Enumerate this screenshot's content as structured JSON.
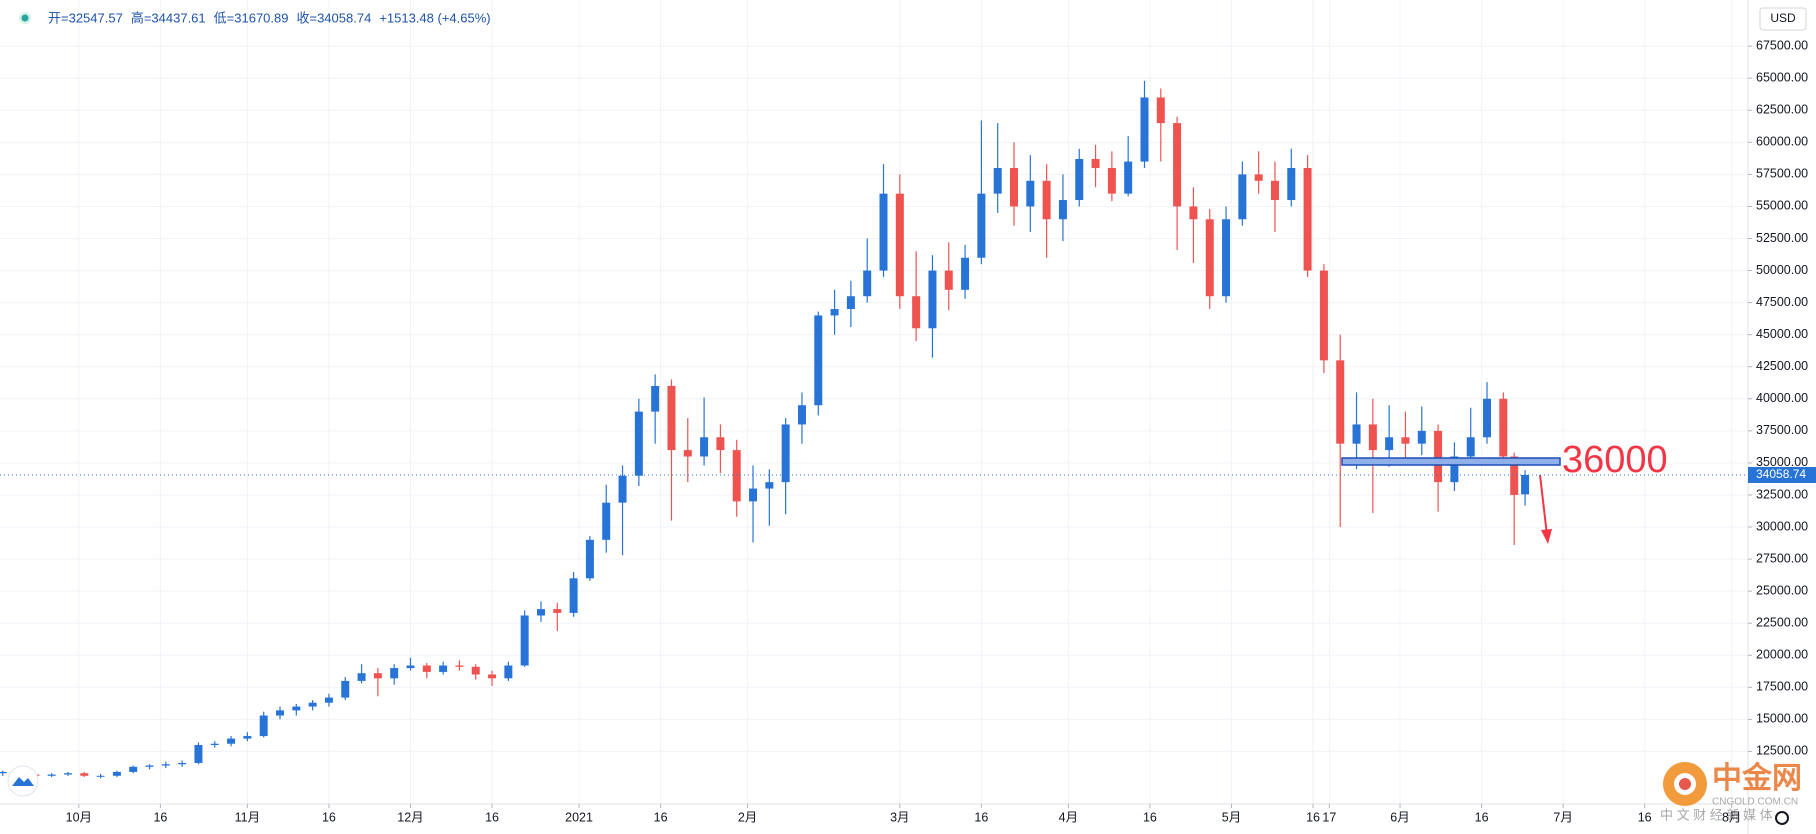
{
  "chart_data": {
    "type": "candlestick",
    "header": [
      "开=32547.57",
      "高=34437.61",
      "低=31670.89",
      "收=34058.74",
      "+1513.48 (+4.65%)"
    ],
    "currency": "USD",
    "annotation": "36000",
    "price_label": {
      "value": 34058.74,
      "label": "34058.74"
    },
    "up_color": "#2874d6",
    "down_color": "#ef5350",
    "grid": true,
    "xlim": [
      -14.5,
      307
    ],
    "ylim": [
      8400,
      71100
    ],
    "xticks": [
      {
        "value": 0,
        "label": "10月"
      },
      {
        "value": 15,
        "label": "16"
      },
      {
        "value": 31,
        "label": "11月"
      },
      {
        "value": 46,
        "label": "16"
      },
      {
        "value": 61,
        "label": "12月"
      },
      {
        "value": 76,
        "label": "16"
      },
      {
        "value": 92,
        "label": "2021"
      },
      {
        "value": 107,
        "label": "16"
      },
      {
        "value": 123,
        "label": "2月"
      },
      {
        "value": 151,
        "label": "3月"
      },
      {
        "value": 166,
        "label": "16"
      },
      {
        "value": 182,
        "label": "4月"
      },
      {
        "value": 197,
        "label": "16"
      },
      {
        "value": 212,
        "label": "5月"
      },
      {
        "value": 227,
        "label": "16"
      },
      {
        "value": 230,
        "label": "17"
      },
      {
        "value": 243,
        "label": "6月"
      },
      {
        "value": 258,
        "label": "16"
      },
      {
        "value": 273,
        "label": "7月"
      },
      {
        "value": 288,
        "label": "16"
      },
      {
        "value": 304,
        "label": "8月"
      }
    ],
    "yticks": [
      {
        "value": 12500,
        "label": "12500.00"
      },
      {
        "value": 15000,
        "label": "15000.00"
      },
      {
        "value": 17500,
        "label": "17500.00"
      },
      {
        "value": 20000,
        "label": "20000.00"
      },
      {
        "value": 22500,
        "label": "22500.00"
      },
      {
        "value": 25000,
        "label": "25000.00"
      },
      {
        "value": 27500,
        "label": "27500.00"
      },
      {
        "value": 30000,
        "label": "30000.00"
      },
      {
        "value": 32500,
        "label": "32500.00"
      },
      {
        "value": 35000,
        "label": "35000.00"
      },
      {
        "value": 37500,
        "label": "37500.00"
      },
      {
        "value": 40000,
        "label": "40000.00"
      },
      {
        "value": 42500,
        "label": "42500.00"
      },
      {
        "value": 45000,
        "label": "45000.00"
      },
      {
        "value": 47500,
        "label": "47500.00"
      },
      {
        "value": 50000,
        "label": "50000.00"
      },
      {
        "value": 52500,
        "label": "52500.00"
      },
      {
        "value": 55000,
        "label": "55000.00"
      },
      {
        "value": 57500,
        "label": "57500.00"
      },
      {
        "value": 60000,
        "label": "60000.00"
      },
      {
        "value": 62500,
        "label": "62500.00"
      },
      {
        "value": 65000,
        "label": "65000.00"
      },
      {
        "value": 67500,
        "label": "67500.00"
      }
    ],
    "x": [
      -14,
      -11,
      -8,
      -5,
      -2,
      1,
      4,
      7,
      10,
      13,
      16,
      19,
      22,
      25,
      28,
      31,
      34,
      37,
      40,
      43,
      46,
      49,
      52,
      55,
      58,
      61,
      64,
      67,
      70,
      73,
      76,
      79,
      82,
      85,
      88,
      91,
      94,
      97,
      100,
      103,
      106,
      109,
      112,
      115,
      118,
      121,
      124,
      127,
      130,
      133,
      136,
      139,
      142,
      145,
      148,
      151,
      154,
      157,
      160,
      163,
      166,
      169,
      172,
      175,
      178,
      181,
      184,
      187,
      190,
      193,
      196,
      199,
      202,
      205,
      208,
      211,
      214,
      217,
      220,
      223,
      226,
      229,
      232,
      235,
      238,
      241,
      244,
      247,
      250,
      253,
      256,
      259,
      262,
      264,
      266
    ],
    "open": [
      10800,
      10900,
      10700,
      10600,
      10700,
      10800,
      10600,
      10600,
      10900,
      11300,
      11400,
      11500,
      11600,
      13000,
      13100,
      13500,
      13700,
      15300,
      15700,
      16000,
      16300,
      16700,
      18000,
      18600,
      18200,
      19000,
      19200,
      18700,
      19200,
      19100,
      18500,
      18200,
      19200,
      23100,
      23600,
      23300,
      26000,
      29000,
      31900,
      34000,
      39000,
      41000,
      36000,
      35500,
      37000,
      36000,
      32000,
      33000,
      33500,
      38000,
      39500,
      46500,
      47000,
      48000,
      50000,
      56000,
      48000,
      45500,
      50000,
      48500,
      51000,
      56000,
      58000,
      55000,
      57000,
      54000,
      55500,
      58700,
      58000,
      56000,
      58500,
      63500,
      61500,
      55000,
      54000,
      48000,
      54000,
      57500,
      57000,
      55500,
      58000,
      50000,
      43000,
      36500,
      38000,
      36000,
      37000,
      36500,
      37500,
      33500,
      35500,
      37000,
      40000,
      35500,
      32547.57
    ],
    "high": [
      11000,
      11000,
      10850,
      10800,
      10900,
      10900,
      10750,
      11000,
      11400,
      11500,
      11700,
      11800,
      13200,
      13300,
      13700,
      14000,
      15600,
      16000,
      16200,
      16500,
      17000,
      18300,
      19300,
      19000,
      19300,
      19800,
      19400,
      19500,
      19600,
      19300,
      18800,
      19500,
      23500,
      24200,
      24100,
      26500,
      29300,
      33300,
      34800,
      40000,
      41900,
      41500,
      38500,
      40100,
      38000,
      36800,
      34800,
      34500,
      38500,
      40500,
      46800,
      48500,
      49200,
      52500,
      58300,
      57500,
      51500,
      51200,
      52200,
      52000,
      61700,
      61500,
      60000,
      59000,
      58300,
      57500,
      59500,
      59800,
      59300,
      60500,
      64800,
      64200,
      62000,
      56500,
      54800,
      55000,
      58500,
      59300,
      58500,
      59500,
      59000,
      50500,
      45000,
      40500,
      40000,
      39500,
      39000,
      39400,
      38000,
      36600,
      39300,
      41300,
      40500,
      35800,
      34437.61
    ],
    "low": [
      10600,
      10600,
      10500,
      10500,
      10600,
      10500,
      10400,
      10500,
      10800,
      11100,
      11200,
      11300,
      11500,
      12800,
      12900,
      13300,
      13600,
      15000,
      15300,
      15700,
      16000,
      16500,
      17800,
      16800,
      17700,
      18800,
      18200,
      18500,
      18800,
      18100,
      17600,
      18000,
      19100,
      22600,
      21900,
      23000,
      25800,
      28000,
      27800,
      33200,
      36500,
      30500,
      33500,
      34800,
      34200,
      30800,
      28800,
      30100,
      31000,
      36500,
      38700,
      45000,
      45600,
      47500,
      49500,
      47000,
      44500,
      43200,
      46900,
      47800,
      50500,
      54500,
      53500,
      53000,
      51000,
      52300,
      55000,
      56500,
      55400,
      55800,
      58000,
      58500,
      51600,
      50600,
      47000,
      47500,
      53500,
      56000,
      53000,
      55000,
      49500,
      42000,
      30000,
      34500,
      31100,
      34700,
      35200,
      35600,
      31200,
      32800,
      34800,
      36500,
      34800,
      28600,
      31670.89
    ],
    "close": [
      10900,
      10700,
      10600,
      10700,
      10800,
      10600,
      10600,
      10900,
      11300,
      11400,
      11500,
      11600,
      13000,
      13100,
      13500,
      13700,
      15300,
      15700,
      16000,
      16300,
      16700,
      18000,
      18600,
      18200,
      19000,
      19200,
      18700,
      19200,
      19100,
      18500,
      18200,
      19200,
      23100,
      23600,
      23300,
      26000,
      29000,
      31900,
      34000,
      39000,
      41000,
      36000,
      35500,
      37000,
      36000,
      32000,
      33000,
      33500,
      38000,
      39500,
      46500,
      47000,
      48000,
      50000,
      56000,
      48000,
      45500,
      50000,
      48500,
      51000,
      56000,
      58000,
      55000,
      57000,
      54000,
      55500,
      58700,
      58000,
      56000,
      58500,
      63500,
      61500,
      55000,
      54000,
      48000,
      54000,
      57500,
      57000,
      55500,
      58000,
      50000,
      43000,
      36500,
      38000,
      36000,
      37000,
      36500,
      37500,
      33500,
      35500,
      37000,
      40000,
      35500,
      32500,
      34058.74
    ]
  },
  "watermark": {
    "brand": "中金网",
    "site": "CNGOLD.COM.CN",
    "tagline": "中 文 财 经 新 媒 体"
  }
}
